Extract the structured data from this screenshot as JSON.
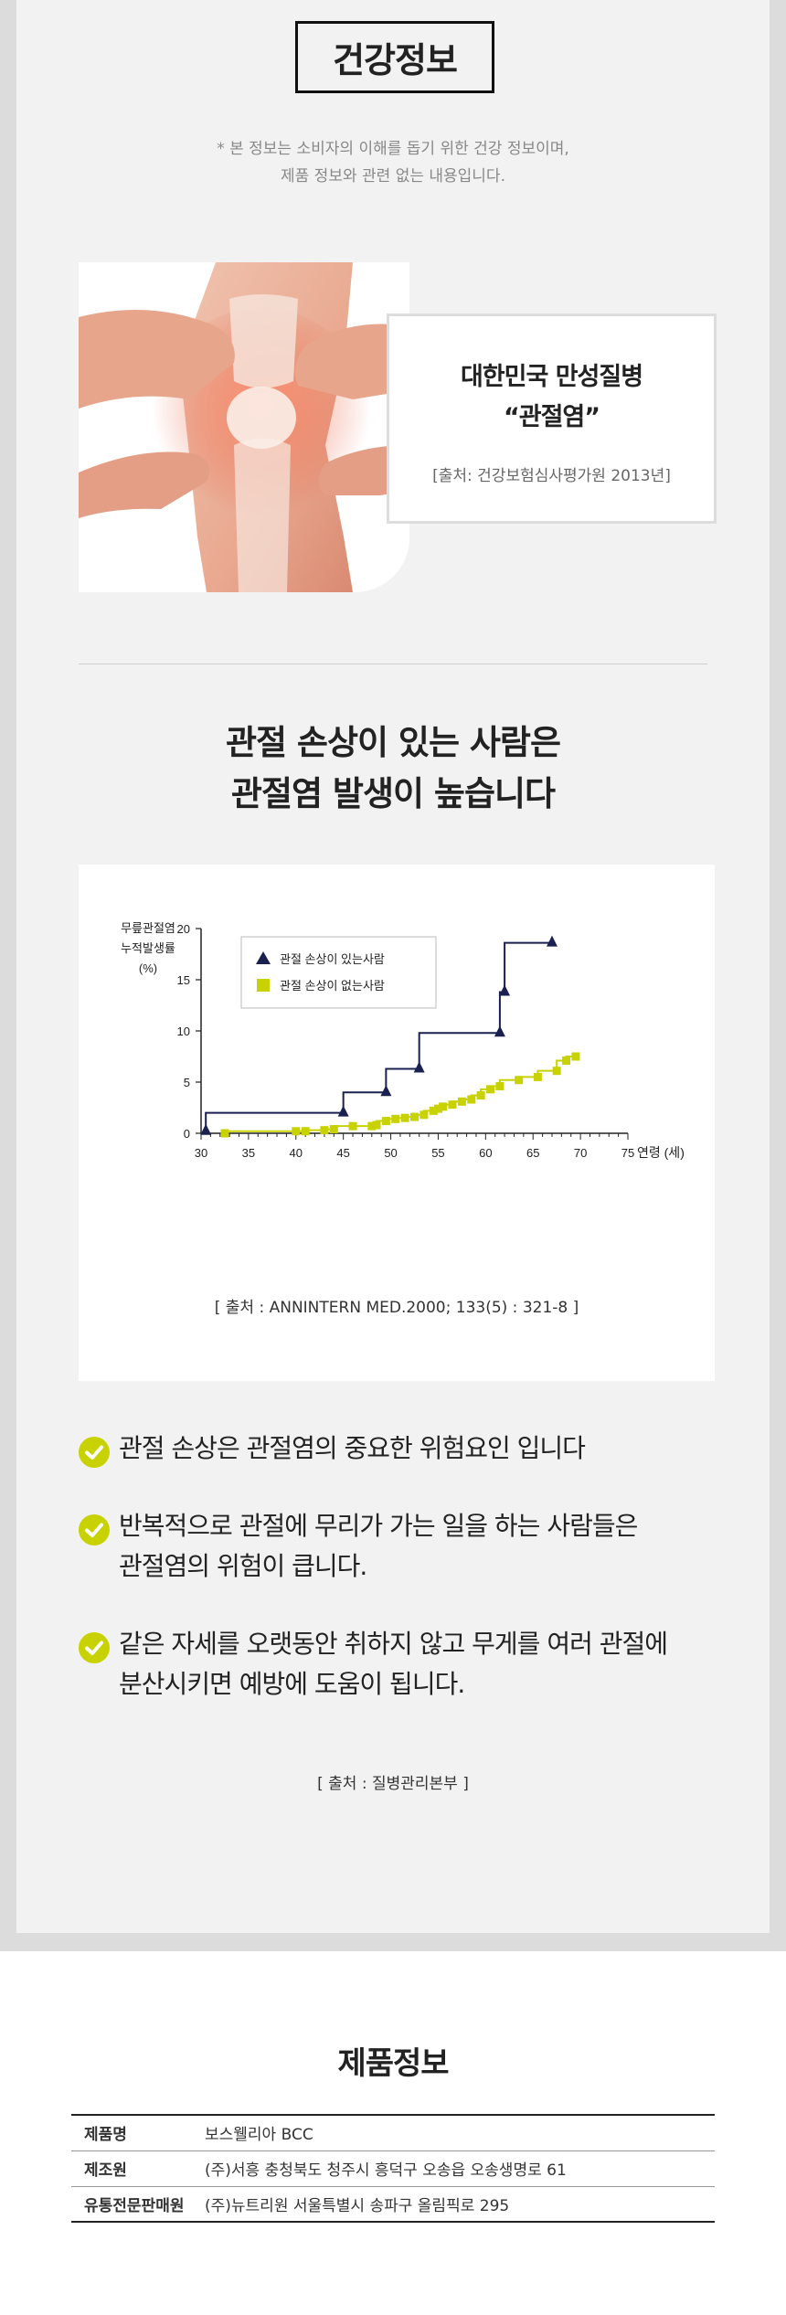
{
  "health": {
    "title": "건강정보",
    "note_line1": "* 본 정보는 소비자의 이해를 돕기 위한 건강 정보이며,",
    "note_line2": "제품 정보와 관련 없는 내용입니다."
  },
  "callout": {
    "line1": "대한민국 만성질병",
    "line2": "“관절염”",
    "source": "[출처: 건강보험심사평가원 2013년]"
  },
  "heading": {
    "line1": "관절 손상이 있는 사람은",
    "line2": "관절염 발생이 높습니다"
  },
  "chart_data": {
    "type": "line",
    "ylabel_lines": [
      "무릎관절염",
      "누적발생률",
      "(%)"
    ],
    "xlabel": "연령 (세)",
    "x_ticks": [
      30,
      35,
      40,
      45,
      50,
      55,
      60,
      65,
      70,
      75
    ],
    "y_ticks": [
      0,
      5,
      10,
      15,
      20
    ],
    "xlim": [
      30,
      75
    ],
    "ylim": [
      0,
      20
    ],
    "grid": false,
    "legend_position": "top-left",
    "series": [
      {
        "name": "관절 손상이 있는사람",
        "color": "#1a2150",
        "marker": "triangle",
        "step": true,
        "x": [
          30.5,
          45,
          49.5,
          53,
          61.5,
          62,
          67
        ],
        "y": [
          0.2,
          2,
          4,
          6.3,
          9.8,
          13.8,
          18.6
        ]
      },
      {
        "name": "관절 손상이 없는사람",
        "color": "#c8d200",
        "marker": "square",
        "step": true,
        "x": [
          32.5,
          40,
          41,
          43,
          44,
          46,
          48,
          48.5,
          49.5,
          50.5,
          51.5,
          52.5,
          53.5,
          54.5,
          55,
          55.5,
          56.5,
          57.5,
          58.5,
          59.5,
          60.5,
          61.5,
          63.5,
          65.5,
          67.5,
          68.5,
          69.5
        ],
        "y": [
          0,
          0.2,
          0.2,
          0.3,
          0.4,
          0.7,
          0.7,
          0.8,
          1.2,
          1.4,
          1.5,
          1.6,
          1.8,
          2.2,
          2.4,
          2.6,
          2.8,
          3.1,
          3.3,
          3.7,
          4.3,
          4.6,
          5.2,
          5.5,
          6.1,
          7.1,
          7.5
        ]
      }
    ],
    "source": "[ 출처 : ANNINTERN MED.2000; 133(5) : 321-8 ]"
  },
  "points": {
    "items": [
      {
        "line1": "관절 손상은 관절염의 중요한 위험요인 입니다",
        "line2": ""
      },
      {
        "line1": "반복적으로 관절에 무리가 가는 일을 하는 사람들은",
        "line2": "관절염의 위험이 큽니다."
      },
      {
        "line1": "같은 자세를 오랫동안 취하지 않고 무게를 여러 관절에",
        "line2": "분산시키면 예방에 도움이 됩니다."
      }
    ],
    "source": "[ 출처 : 질병관리본부 ]"
  },
  "product": {
    "title": "제품정보",
    "rows": [
      {
        "key": "제품명",
        "value": "보스웰리아 BCC"
      },
      {
        "key": "제조원",
        "value": "(주)서흥 충청북도 청주시 흥덕구 오송읍 오송생명로 61"
      },
      {
        "key": "유통전문판매원",
        "value": "(주)뉴트리원 서울특별시 송파구 올림픽로 295"
      }
    ]
  }
}
